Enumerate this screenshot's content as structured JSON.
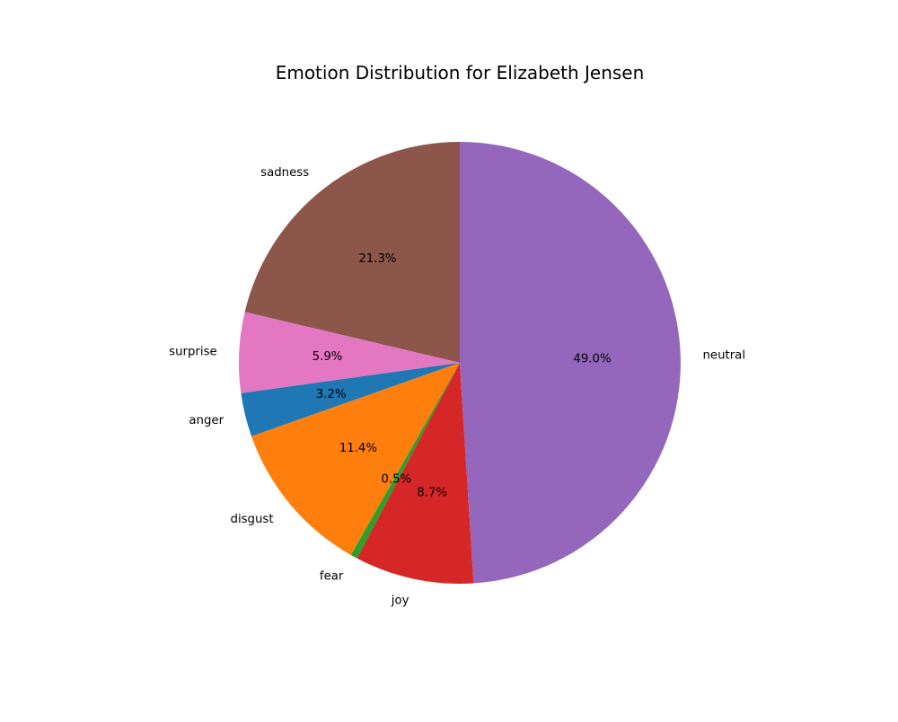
{
  "chart_data": {
    "type": "pie",
    "title": "Emotion Distribution for Elizabeth Jensen",
    "start_angle_deg": 90,
    "direction": "counterclockwise",
    "slices": [
      {
        "label": "sadness",
        "value": 21.3,
        "pct_label": "21.3%",
        "color": "#8c564b"
      },
      {
        "label": "surprise",
        "value": 5.9,
        "pct_label": "5.9%",
        "color": "#e377c2"
      },
      {
        "label": "anger",
        "value": 3.2,
        "pct_label": "3.2%",
        "color": "#1f77b4"
      },
      {
        "label": "disgust",
        "value": 11.4,
        "pct_label": "11.4%",
        "color": "#ff7f0e"
      },
      {
        "label": "fear",
        "value": 0.5,
        "pct_label": "0.5%",
        "color": "#2ca02c"
      },
      {
        "label": "joy",
        "value": 8.7,
        "pct_label": "8.7%",
        "color": "#d62728"
      },
      {
        "label": "neutral",
        "value": 49.0,
        "pct_label": "49.0%",
        "color": "#9467bd"
      }
    ]
  }
}
